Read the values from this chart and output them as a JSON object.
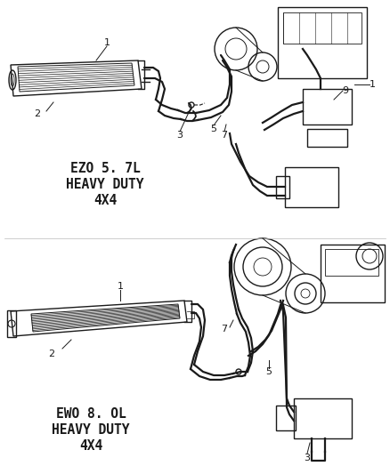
{
  "background_color": "#ffffff",
  "line_color": "#1a1a1a",
  "label1": [
    "EZO 5. 7L",
    "HEAVY DUTY",
    "4X4"
  ],
  "label2": [
    "EWO 8. OL",
    "HEAVY DUTY",
    "4X4"
  ],
  "fig_width": 4.38,
  "fig_height": 5.33,
  "dpi": 100
}
